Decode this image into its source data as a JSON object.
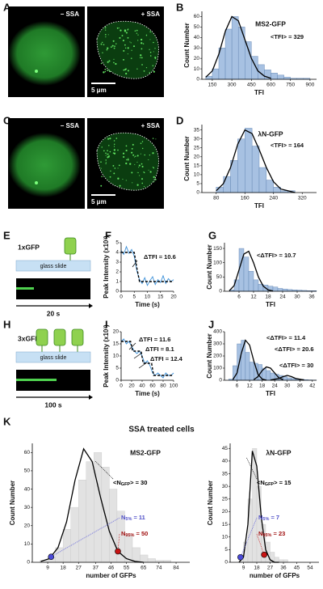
{
  "figure": {
    "letters": [
      "A",
      "B",
      "C",
      "D",
      "E",
      "F",
      "G",
      "H",
      "I",
      "J",
      "K"
    ],
    "micrographs": [
      {
        "left": "− SSA",
        "right": "+ SSA",
        "scale": "5 μm"
      },
      {
        "left": "− SSA",
        "right": "+ SSA",
        "scale": "5 μm"
      }
    ],
    "schematics": [
      {
        "label": "1xGFP",
        "surface": "glass slide",
        "time": "20 s"
      },
      {
        "label": "3xGFP",
        "surface": "glass slide",
        "time": "100 s"
      }
    ],
    "section_title": "SSA treated cells"
  },
  "chart_data": [
    {
      "type": "histogram",
      "title": "MS2-GFP",
      "annotations": [
        {
          "text": "<TFI> = 329"
        }
      ],
      "xlabel": "TFI",
      "ylabel": "Count Number",
      "bins": [
        100,
        150,
        200,
        250,
        300,
        350,
        400,
        450,
        500,
        550,
        600,
        650,
        700,
        750,
        800,
        850,
        900
      ],
      "counts": [
        3,
        10,
        30,
        48,
        60,
        50,
        36,
        22,
        14,
        9,
        6,
        4,
        2,
        1,
        1,
        1
      ],
      "color": "#a7c1e2",
      "fits": [
        {
          "x": [
            100,
            150,
            200,
            250,
            300,
            350,
            400,
            450,
            500,
            550,
            600
          ],
          "values": [
            2,
            8,
            24,
            46,
            60,
            56,
            38,
            20,
            8,
            3,
            1
          ],
          "color": "#000000"
        }
      ],
      "xlim": [
        70,
        950
      ],
      "ylim": [
        0,
        65
      ],
      "xticks": [
        150,
        300,
        450,
        600,
        750,
        900
      ],
      "yticks": [
        0,
        10,
        20,
        30,
        40,
        50,
        60
      ]
    },
    {
      "type": "histogram",
      "title": "λN-GFP",
      "annotations": [
        {
          "text": "<TFI> = 164"
        }
      ],
      "xlabel": "TFI",
      "ylabel": "Count Number",
      "bins": [
        80,
        100,
        120,
        140,
        160,
        180,
        200,
        220,
        240,
        260,
        280,
        300
      ],
      "counts": [
        3,
        9,
        18,
        30,
        36,
        26,
        14,
        7,
        3,
        1,
        1
      ],
      "color": "#a7c1e2",
      "fits": [
        {
          "x": [
            80,
            100,
            120,
            140,
            160,
            180,
            200,
            220,
            240,
            260,
            280,
            300
          ],
          "values": [
            1,
            5,
            14,
            27,
            35,
            33,
            24,
            14,
            6,
            2,
            1,
            0
          ],
          "color": "#000000"
        }
      ],
      "xlim": [
        40,
        360
      ],
      "ylim": [
        0,
        38
      ],
      "xticks": [
        80,
        160,
        240,
        320
      ],
      "yticks": [
        0,
        5,
        10,
        15,
        20,
        25,
        30,
        35
      ]
    },
    {
      "type": "line",
      "annotations": [
        {
          "text": "ΔTFI = 10.6"
        }
      ],
      "xlabel": "Time (s)",
      "ylabel": "Peak Intensity (x10³)",
      "series": [
        {
          "color": "#3a8fd8",
          "style": "solid",
          "x": [
            0,
            1,
            2,
            3,
            4,
            5,
            6,
            7,
            8,
            9,
            10,
            11,
            12,
            13,
            14,
            15,
            16,
            17,
            18,
            19,
            20
          ],
          "values": [
            4.2,
            3.8,
            4.6,
            3.9,
            4.3,
            3.6,
            2.1,
            1.2,
            0.8,
            1.4,
            0.6,
            1.1,
            1.5,
            0.7,
            1.2,
            0.9,
            1.6,
            0.8,
            1.3,
            1.0,
            1.2
          ]
        },
        {
          "color": "#000000",
          "style": "dashed",
          "x": [
            0,
            5,
            6,
            7,
            20
          ],
          "values": [
            4,
            4,
            2.4,
            1,
            1
          ]
        }
      ],
      "xlim": [
        0,
        20
      ],
      "ylim": [
        0,
        5
      ],
      "xticks": [
        0,
        5,
        10,
        15,
        20
      ],
      "yticks": [
        0,
        1,
        2,
        3,
        4,
        5
      ]
    },
    {
      "type": "histogram",
      "annotations": [
        {
          "text": "<ΔTFI> = 10.7"
        }
      ],
      "xlabel": "TFI",
      "ylabel": "Count Number",
      "bins": [
        2,
        4,
        6,
        8,
        10,
        12,
        14,
        16,
        18,
        20,
        22,
        24,
        26,
        28,
        30,
        32,
        34,
        36,
        38
      ],
      "counts": [
        5,
        40,
        150,
        120,
        70,
        40,
        25,
        22,
        18,
        15,
        10,
        8,
        6,
        5,
        4,
        3,
        2,
        2
      ],
      "color": "#a7c1e2",
      "fits": [
        {
          "x": [
            2,
            4,
            6,
            8,
            10,
            12,
            14,
            16,
            18,
            20
          ],
          "values": [
            2,
            20,
            75,
            130,
            140,
            100,
            50,
            18,
            5,
            1
          ],
          "color": "#000000"
        }
      ],
      "xlim": [
        0,
        38
      ],
      "ylim": [
        0,
        170
      ],
      "xticks": [
        6,
        12,
        18,
        24,
        30,
        36
      ],
      "yticks": [
        0,
        50,
        100,
        150
      ]
    },
    {
      "type": "line",
      "annotations": [
        {
          "text": "ΔTFI = 11.6"
        },
        {
          "text": "ΔTFI = 8.1"
        },
        {
          "text": "ΔTFI = 12.4"
        }
      ],
      "xlabel": "Time (s)",
      "ylabel": "Peak Intensity (x10³)",
      "series": [
        {
          "color": "#3a8fd8",
          "style": "solid",
          "x": [
            0,
            5,
            10,
            15,
            20,
            25,
            30,
            35,
            40,
            45,
            50,
            55,
            60,
            65,
            70,
            75,
            80,
            85,
            90,
            95,
            100
          ],
          "values": [
            16,
            17,
            15,
            16,
            14,
            12,
            11,
            12,
            10,
            7,
            8,
            6,
            3,
            2,
            3,
            2,
            1,
            3,
            2,
            2,
            3
          ]
        },
        {
          "color": "#000000",
          "style": "dashed",
          "x": [
            0,
            18,
            22,
            38,
            42,
            58,
            62,
            100
          ],
          "values": [
            16,
            16,
            12,
            12,
            7,
            7,
            2,
            2
          ]
        }
      ],
      "xlim": [
        0,
        100
      ],
      "ylim": [
        0,
        20
      ],
      "xticks": [
        0,
        20,
        40,
        60,
        80,
        100
      ],
      "yticks": [
        0,
        5,
        10,
        15,
        20
      ]
    },
    {
      "type": "histogram",
      "annotations": [
        {
          "text": "<ΔTFI> = 11.4"
        },
        {
          "text": "<ΔTFI> = 20.6"
        },
        {
          "text": "<ΔTFI> = 30"
        }
      ],
      "xlabel": "TFI",
      "ylabel": "Count Number",
      "bins": [
        2,
        4,
        6,
        8,
        10,
        12,
        14,
        16,
        18,
        20,
        22,
        24,
        26,
        28,
        30,
        32,
        34,
        36,
        38,
        40,
        42,
        44
      ],
      "counts": [
        10,
        120,
        300,
        330,
        230,
        150,
        140,
        130,
        100,
        80,
        60,
        50,
        40,
        30,
        20,
        15,
        10,
        8,
        5,
        3,
        2
      ],
      "color": "#a7c1e2",
      "fits": [
        {
          "x": [
            4,
            6,
            8,
            10,
            12,
            14,
            16,
            18,
            20
          ],
          "values": [
            5,
            60,
            220,
            330,
            290,
            160,
            50,
            10,
            1
          ],
          "color": "#000000"
        },
        {
          "x": [
            14,
            16,
            18,
            20,
            22,
            24,
            26,
            28
          ],
          "values": [
            5,
            30,
            80,
            110,
            100,
            60,
            20,
            5
          ],
          "color": "#000000"
        },
        {
          "x": [
            22,
            26,
            28,
            30,
            32,
            34,
            38
          ],
          "values": [
            2,
            15,
            30,
            40,
            30,
            15,
            2
          ],
          "color": "#000000"
        }
      ],
      "xlim": [
        0,
        44
      ],
      "ylim": [
        0,
        400
      ],
      "xticks": [
        6,
        12,
        18,
        24,
        30,
        36,
        42
      ],
      "yticks": [
        0,
        100,
        200,
        300,
        400
      ]
    },
    {
      "type": "histogram",
      "title": "MS2-GFP",
      "annotations": [
        {
          "main": "<N",
          "sub": "GFP",
          "rest": "> = 30",
          "color": "#000000"
        },
        {
          "main": "N",
          "sub": "5%",
          "rest": " = 11",
          "color": "#5050c8"
        },
        {
          "main": "N",
          "sub": "95%",
          "rest": " = 50",
          "color": "#a01010"
        }
      ],
      "xlabel": "number of GFPs",
      "ylabel": "Count Number",
      "bins": [
        4.5,
        9,
        13.5,
        18,
        22.5,
        27,
        31.5,
        36,
        40.5,
        45,
        49.5,
        54,
        58.5,
        63,
        67.5,
        72,
        76.5,
        81,
        85.5
      ],
      "counts": [
        1,
        3,
        8,
        18,
        30,
        45,
        55,
        60,
        52,
        40,
        28,
        15,
        8,
        4,
        2,
        1,
        1,
        0
      ],
      "color": "#e2e2e2",
      "fits": [
        {
          "x": [
            5,
            10,
            15,
            20,
            25,
            30,
            35,
            40,
            45,
            50,
            55,
            60,
            65
          ],
          "values": [
            0.5,
            2,
            8,
            22,
            45,
            62,
            55,
            35,
            17,
            6,
            2,
            0.5,
            0
          ],
          "color": "#000000"
        }
      ],
      "markers": [
        {
          "x": 11,
          "y": 3,
          "color": "#4a4ad8"
        },
        {
          "x": 50,
          "y": 6,
          "color": "#c81414"
        }
      ],
      "xlim": [
        0,
        92
      ],
      "ylim": [
        0,
        65
      ],
      "xticks": [
        9,
        18,
        27,
        37,
        46,
        55,
        65,
        74,
        84
      ],
      "yticks": [
        0,
        10,
        20,
        30,
        40,
        50,
        60
      ]
    },
    {
      "type": "histogram",
      "title": "λN-GFP",
      "annotations": [
        {
          "main": "<N",
          "sub": "GFP",
          "rest": "> = 15",
          "color": "#000000"
        },
        {
          "main": "N",
          "sub": "5%",
          "rest": " = 7",
          "color": "#5050c8"
        },
        {
          "main": "N",
          "sub": "95%",
          "rest": " = 23",
          "color": "#a01010"
        }
      ],
      "xlabel": "number of GFPs",
      "ylabel": "Count Number",
      "bins": [
        6,
        9,
        12,
        15,
        18,
        21,
        24,
        27,
        30,
        33,
        36,
        39
      ],
      "counts": [
        2,
        8,
        25,
        45,
        30,
        15,
        8,
        4,
        2,
        1,
        1
      ],
      "color": "#e2e2e2",
      "fits": [
        {
          "x": [
            6,
            9,
            12,
            15,
            18,
            21,
            24,
            27,
            30,
            33
          ],
          "values": [
            0,
            2,
            15,
            44,
            38,
            18,
            5,
            1,
            0,
            0
          ],
          "color": "#000000"
        }
      ],
      "markers": [
        {
          "x": 7,
          "y": 2,
          "color": "#4a4ad8"
        },
        {
          "x": 23,
          "y": 3,
          "color": "#c81414"
        }
      ],
      "xlim": [
        0,
        60
      ],
      "ylim": [
        0,
        47
      ],
      "xticks": [
        9,
        18,
        27,
        36,
        45,
        54
      ],
      "yticks": [
        0,
        5,
        10,
        15,
        20,
        25,
        30,
        35,
        40,
        45
      ]
    }
  ]
}
